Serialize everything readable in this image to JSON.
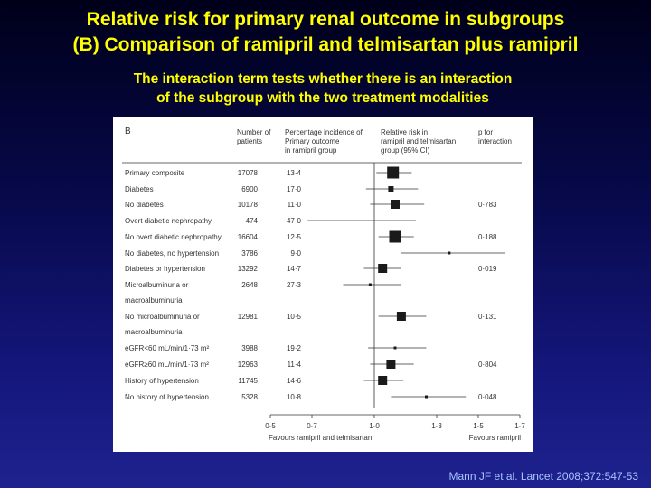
{
  "slide": {
    "title_line1": "Relative risk for primary renal outcome in subgroups",
    "title_line2": "(B) Comparison of ramipril and telmisartan plus ramipril",
    "subtitle_line1": "The interaction term tests whether there is an interaction",
    "subtitle_line2": "of the subgroup with the two treatment modalities",
    "citation": "Mann JF et al. Lancet 2008;372:547-53"
  },
  "chart_data": {
    "type": "forest",
    "panel_label": "B",
    "columns": {
      "patients": [
        "Number of",
        "patients"
      ],
      "incidence": [
        "Percentage incidence of",
        "Primary outcome",
        "in ramipril group"
      ],
      "rr": [
        "Relative risk in",
        "ramipril and telmisartan",
        "group (95% CI)"
      ],
      "p": [
        "p for",
        "interaction"
      ]
    },
    "x_axis": {
      "ticks": [
        0.5,
        0.7,
        1.0,
        1.3,
        1.5,
        1.7
      ],
      "tick_labels": [
        "0·5",
        "0·7",
        "1·0",
        "1·3",
        "1·5",
        "1·7"
      ],
      "range": [
        0.5,
        1.7
      ],
      "reference_line": 1.0,
      "favours_left": "Favours ramipril and telmisartan",
      "favours_right": "Favours ramipril"
    },
    "rows": [
      {
        "label": "Primary composite",
        "patients": "17078",
        "incidence": "13·4",
        "rr": 1.09,
        "ci": [
          1.01,
          1.18
        ],
        "p": "",
        "weight": "large"
      },
      {
        "label": "Diabetes",
        "patients": "6900",
        "incidence": "17·0",
        "rr": 1.08,
        "ci": [
          0.96,
          1.21
        ],
        "p": "",
        "weight": "small"
      },
      {
        "label": "No diabetes",
        "patients": "10178",
        "incidence": "11·0",
        "rr": 1.1,
        "ci": [
          0.98,
          1.24
        ],
        "p": "0·783",
        "weight": "medium"
      },
      {
        "label": "Overt diabetic nephropathy",
        "patients": "474",
        "incidence": "47·0",
        "rr": null,
        "ci": [
          0.68,
          1.2
        ],
        "p": "",
        "weight": "none"
      },
      {
        "label": "No overt diabetic nephropathy",
        "patients": "16604",
        "incidence": "12·5",
        "rr": 1.1,
        "ci": [
          1.02,
          1.19
        ],
        "p": "0·188",
        "weight": "large"
      },
      {
        "label": "No diabetes, no hypertension",
        "patients": "3786",
        "incidence": "9·0",
        "rr": 1.36,
        "ci": [
          1.13,
          1.63
        ],
        "p": "",
        "weight": "tiny"
      },
      {
        "label": "Diabetes or hypertension",
        "patients": "13292",
        "incidence": "14·7",
        "rr": 1.04,
        "ci": [
          0.95,
          1.13
        ],
        "p": "0·019",
        "weight": "medium"
      },
      {
        "label": "Microalbuminuria or",
        "label2": "macroalbuminuria",
        "patients": "2648",
        "incidence": "27·3",
        "rr": 0.98,
        "ci": [
          0.85,
          1.13
        ],
        "p": "",
        "weight": "tiny"
      },
      {
        "label": "No microalbuminuria or",
        "label2": "macroalbuminuria",
        "patients": "12981",
        "incidence": "10·5",
        "rr": 1.13,
        "ci": [
          1.02,
          1.25
        ],
        "p": "0·131",
        "weight": "medium"
      },
      {
        "label": "eGFR<60 mL/min/1·73 m²",
        "patients": "3988",
        "incidence": "19·2",
        "rr": 1.1,
        "ci": [
          0.97,
          1.25
        ],
        "p": "",
        "weight": "tiny"
      },
      {
        "label": "eGFR≥60 mL/min/1·73 m²",
        "patients": "12963",
        "incidence": "11·4",
        "rr": 1.08,
        "ci": [
          0.98,
          1.19
        ],
        "p": "0·804",
        "weight": "medium"
      },
      {
        "label": "History of hypertension",
        "patients": "11745",
        "incidence": "14·6",
        "rr": 1.04,
        "ci": [
          0.95,
          1.14
        ],
        "p": "",
        "weight": "medium"
      },
      {
        "label": "No history of hypertension",
        "patients": "5328",
        "incidence": "10·8",
        "rr": 1.25,
        "ci": [
          1.08,
          1.44
        ],
        "p": "0·048",
        "weight": "tiny"
      }
    ]
  },
  "colors": {
    "title": "#ffff00",
    "citation": "#a8c4ff",
    "marker": "#1a1a1a"
  }
}
